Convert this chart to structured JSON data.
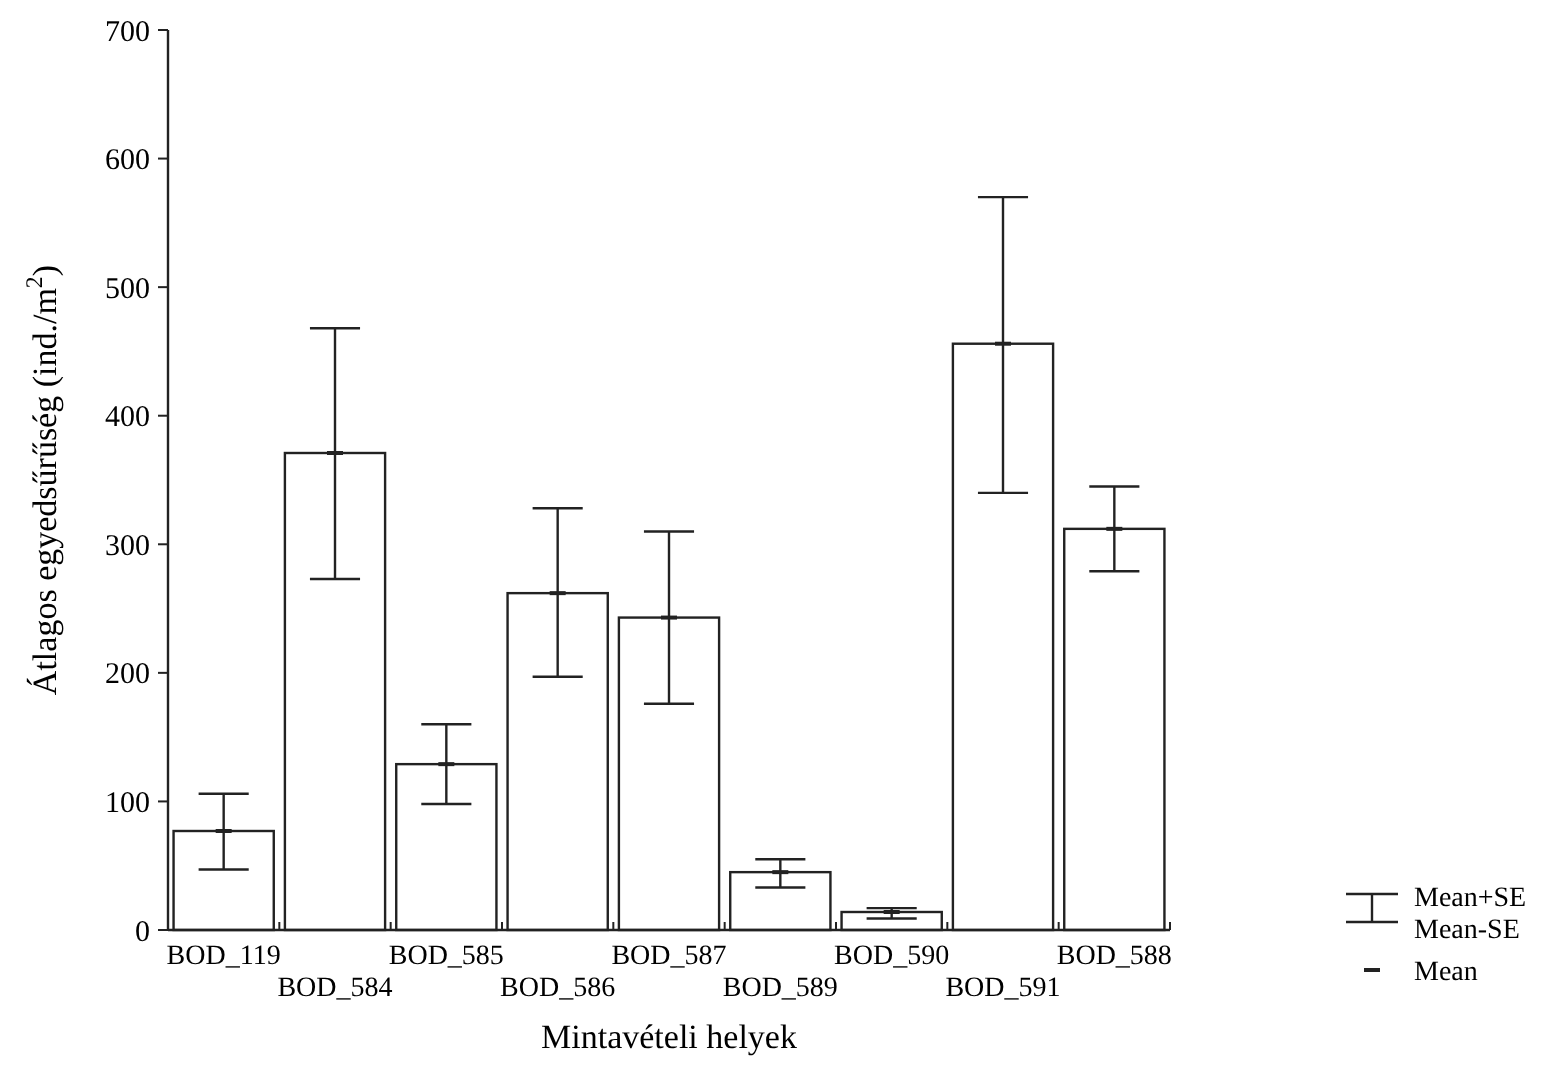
{
  "chart_data": {
    "type": "bar",
    "xlabel": "Mintavételi helyek",
    "ylabel": "Átlagos egyedsűrűség (ind./m$^{2}$)",
    "categories": [
      "BOD_119",
      "BOD_584",
      "BOD_585",
      "BOD_586",
      "BOD_587",
      "BOD_589",
      "BOD_590",
      "BOD_591",
      "BOD_588"
    ],
    "values": [
      77,
      371,
      129,
      262,
      243,
      45,
      14,
      456,
      312
    ],
    "errors": [
      [
        47,
        106
      ],
      [
        273,
        468
      ],
      [
        98,
        160
      ],
      [
        197,
        328
      ],
      [
        176,
        310
      ],
      [
        33,
        55
      ],
      [
        9,
        17
      ],
      [
        340,
        570
      ],
      [
        279,
        345
      ]
    ],
    "color": "#ffffff",
    "ylim": [
      0,
      700
    ],
    "yticks": [
      0,
      100,
      200,
      300,
      400,
      500,
      600,
      700
    ],
    "annotations": [
      "Mean+SE",
      "Mean-SE",
      "Mean"
    ]
  }
}
